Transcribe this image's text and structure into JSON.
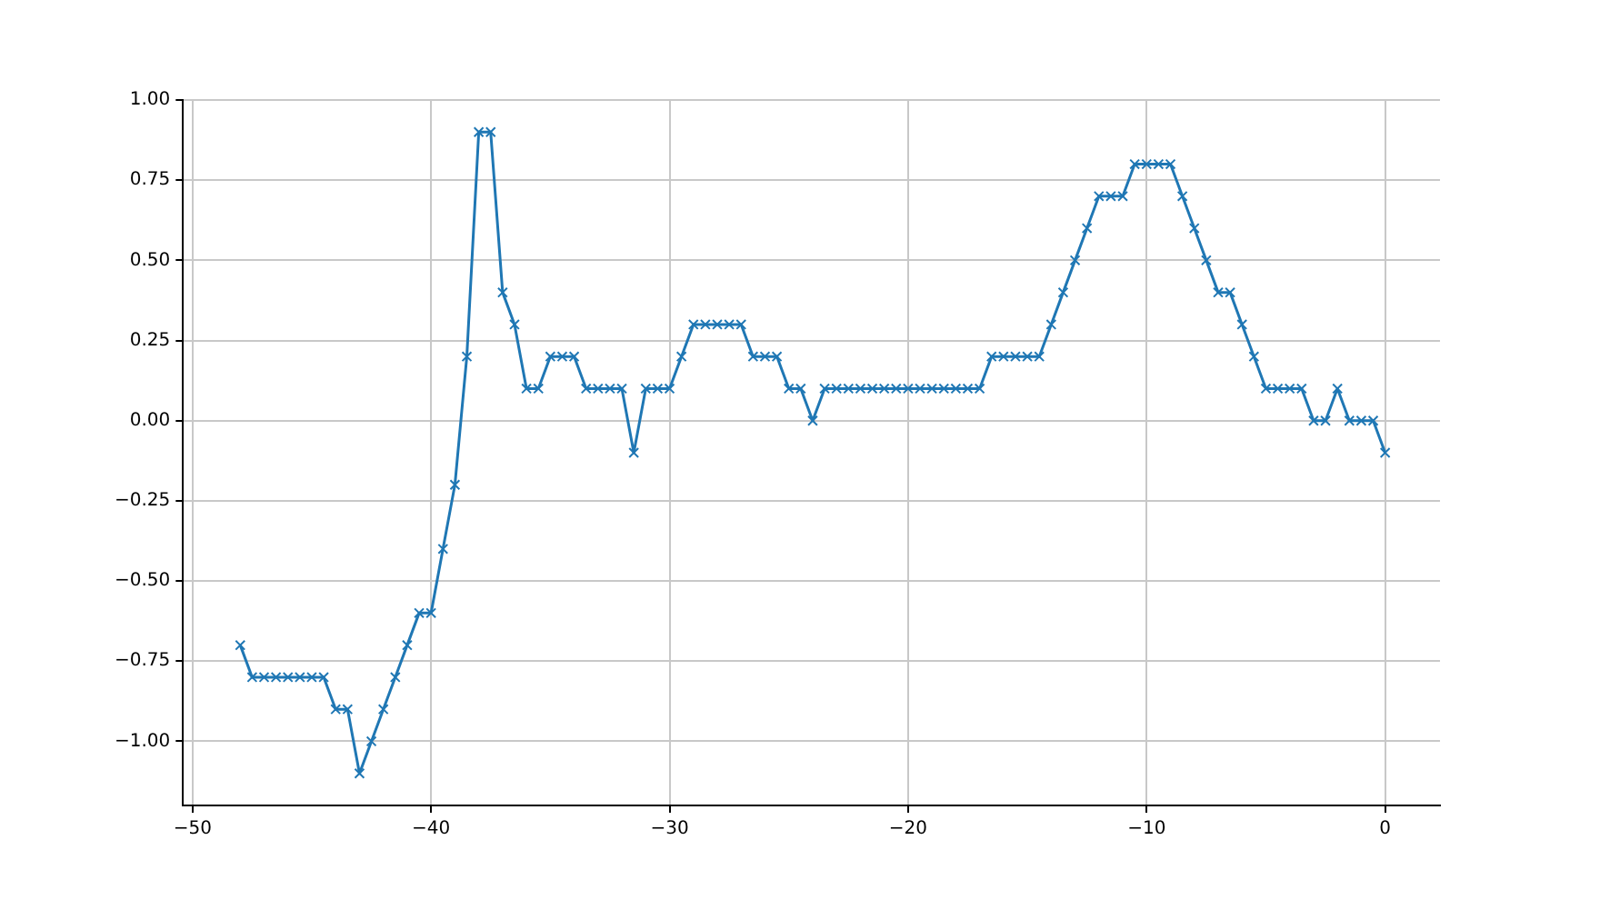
{
  "chart_data": {
    "type": "line",
    "marker": "cross",
    "line_style": "solid",
    "grid": true,
    "legend": false,
    "xlim": [
      -50.4,
      2.3
    ],
    "ylim": [
      -1.2,
      1.0
    ],
    "xticks": [
      {
        "value": -50,
        "label": "−50"
      },
      {
        "value": -40,
        "label": "−40"
      },
      {
        "value": -30,
        "label": "−30"
      },
      {
        "value": -20,
        "label": "−20"
      },
      {
        "value": -10,
        "label": "−10"
      },
      0
    ],
    "yticks": [
      {
        "value": -1,
        "label": "−1.00"
      },
      {
        "value": -0.75,
        "label": "−0.75"
      },
      {
        "value": -0.5,
        "label": "−0.50"
      },
      {
        "value": -0.25,
        "label": "−0.25"
      },
      {
        "value": 0,
        "label": "0.00"
      },
      {
        "value": 0.25,
        "label": "0.25"
      },
      {
        "value": 0.5,
        "label": "0.50"
      },
      {
        "value": 0.75,
        "label": "0.75"
      },
      {
        "value": 1,
        "label": "1.00"
      }
    ],
    "x": [
      -48,
      -47.5,
      -47,
      -46.5,
      -46,
      -45.5,
      -45,
      -44.5,
      -44,
      -43.5,
      -43,
      -42.5,
      -42,
      -41.5,
      -41,
      -40.5,
      -40,
      -39.5,
      -39,
      -38.5,
      -38,
      -37.5,
      -37,
      -36.5,
      -36,
      -35.5,
      -35,
      -34.5,
      -34,
      -33.5,
      -33,
      -32.5,
      -32,
      -31.5,
      -31,
      -30.5,
      -30,
      -29.5,
      -29,
      -28.5,
      -28,
      -27.5,
      -27,
      -26.5,
      -26,
      -25.5,
      -25,
      -24.5,
      -24,
      -23.5,
      -23,
      -22.5,
      -22,
      -21.5,
      -21,
      -20.5,
      -20,
      -19.5,
      -19,
      -18.5,
      -18,
      -17.5,
      -17,
      -16.5,
      -16,
      -15.5,
      -15,
      -14.5,
      -14,
      -13.5,
      -13,
      -12.5,
      -12,
      -11.5,
      -11,
      -10.5,
      -10,
      -9.5,
      -9,
      -8.5,
      -8,
      -7.5,
      -7,
      -6.5,
      -6,
      -5.5,
      -5,
      -4.5,
      -4,
      -3.5,
      -3,
      -2.5,
      -2,
      -1.5,
      -1,
      -0.5,
      0
    ],
    "series": [
      {
        "color": "#1f77b4",
        "values": [
          -0.7,
          -0.8,
          -0.8,
          -0.8,
          -0.8,
          -0.8,
          -0.8,
          -0.8,
          -0.9,
          -0.9,
          -1.1,
          -1.0,
          -0.9,
          -0.8,
          -0.7,
          -0.6,
          -0.6,
          -0.4,
          -0.2,
          0.2,
          0.9,
          0.9,
          0.4,
          0.3,
          0.1,
          0.1,
          0.2,
          0.2,
          0.2,
          0.1,
          0.1,
          0.1,
          0.1,
          -0.1,
          0.1,
          0.1,
          0.1,
          0.2,
          0.3,
          0.3,
          0.3,
          0.3,
          0.3,
          0.2,
          0.2,
          0.2,
          0.1,
          0.1,
          0,
          0.1,
          0.1,
          0.1,
          0.1,
          0.1,
          0.1,
          0.1,
          0.1,
          0.1,
          0.1,
          0.1,
          0.1,
          0.1,
          0.1,
          0.2,
          0.2,
          0.2,
          0.2,
          0.2,
          0.3,
          0.4,
          0.5,
          0.6,
          0.7,
          0.7,
          0.7,
          0.8,
          0.8,
          0.8,
          0.8,
          0.7,
          0.6,
          0.5,
          0.4,
          0.4,
          0.3,
          0.2,
          0.1,
          0.1,
          0.1,
          0.1,
          0,
          0,
          0.1,
          0,
          0,
          0,
          -0.1
        ]
      }
    ]
  }
}
